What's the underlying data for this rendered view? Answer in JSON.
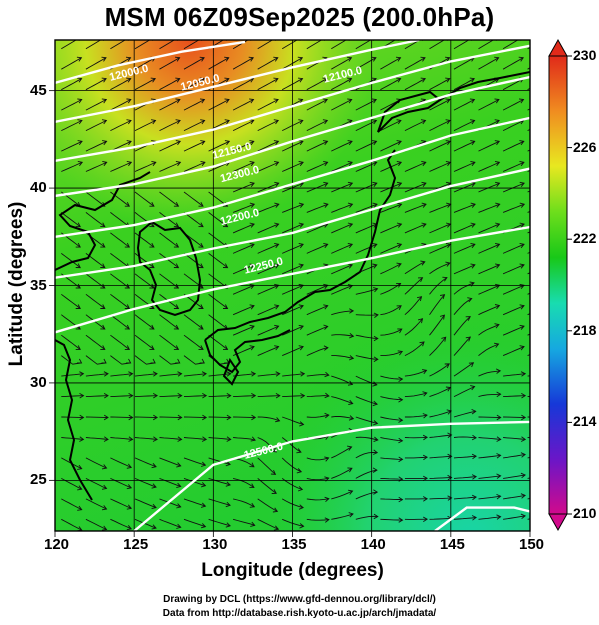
{
  "title": "MSM 06Z09Sep2025 (200.0hPa)",
  "xlabel": "Longitude (degrees)",
  "ylabel": "Latitude  (degrees)",
  "credits": [
    "Drawing by DCL (https://www.gfd-dennou.org/library/dcl/)",
    "Data from http://database.rish.kyoto-u.ac.jp/arch/jmadata/"
  ],
  "chart_data": {
    "type": "heatmap",
    "variable": "200.0hPa",
    "xlim": [
      120,
      150
    ],
    "ylim": [
      22.4,
      47.6
    ],
    "xticks": [
      "120",
      "125",
      "130",
      "135",
      "140",
      "145",
      "150"
    ],
    "yticks": [
      "25",
      "30",
      "35",
      "40",
      "45"
    ],
    "colorbar": {
      "range": [
        210,
        230
      ],
      "ticks": [
        "210",
        "214",
        "218",
        "222",
        "226",
        "230"
      ]
    },
    "contour_labels": [
      "12000.0",
      "12050.0",
      "12100.0",
      "12150.0",
      "12200.0",
      "12250.0",
      "12300.0",
      "12350.0",
      "12400.0",
      "12500.0"
    ],
    "overlays": [
      "streamlines",
      "coastlines",
      "geopotential height contours"
    ],
    "grid": true
  },
  "colors": {
    "warm": "#e8411c",
    "mid": "#22cc22",
    "cool": "#10d8a0",
    "contour": "#ffffff"
  }
}
